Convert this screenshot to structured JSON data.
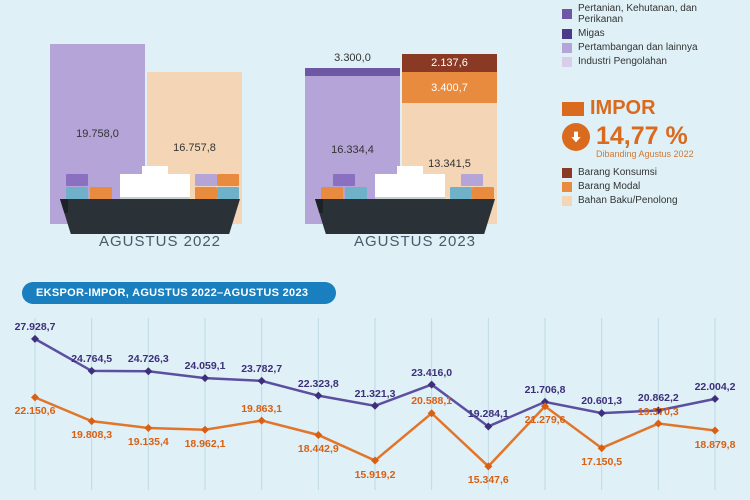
{
  "colors": {
    "background": "#dff1f7",
    "axis_label": "#4a5a66",
    "ekspor_seg": [
      "#b4a4d7",
      "#f4c99c",
      "#6e57a4",
      "#e88b3e"
    ],
    "impor_seg": [
      "#f4d6b7",
      "#e88b3e",
      "#8a3a24"
    ],
    "ekspor_line": "#5c4fa1",
    "impor_line": "#e2752c",
    "ekspor_marker": "#3d2f7a",
    "impor_marker": "#d95f12",
    "title_pill": "#1a7fbf",
    "gridline": "#bfd9e3"
  },
  "upper": {
    "group1": {
      "label": "AGUSTUS 2022",
      "ekspor": {
        "values": [
          "19.758,0"
        ],
        "heights": [
          180
        ]
      },
      "impor": {
        "values": [
          "16.757,8"
        ],
        "heights": [
          152
        ]
      }
    },
    "group2": {
      "label": "AGUSTUS 2023",
      "ekspor": {
        "values": [
          "16.334,4",
          "3.300,0"
        ],
        "heights": [
          148,
          8
        ],
        "extra_label": "3.300,0"
      },
      "impor": {
        "values": [
          "13.341,5",
          "3.400,7",
          "2.137,6"
        ],
        "heights": [
          121,
          31,
          18
        ]
      }
    }
  },
  "legend_top": [
    {
      "color": "#6e57a4",
      "label": "Pertanian, Kehutanan, dan Perikanan"
    },
    {
      "color": "#4b3a8a",
      "label": "Migas"
    },
    {
      "color": "#b4a4d7",
      "label": "Pertambangan dan lainnya"
    },
    {
      "color": "#d9cde9",
      "label": "Industri Pengolahan"
    }
  ],
  "impor_block": {
    "title": "IMPOR",
    "pct": "14,77 %",
    "caption": "Dibanding Agustus 2022",
    "legend": [
      {
        "color": "#8a3a24",
        "label": "Barang Konsumsi"
      },
      {
        "color": "#e88b3e",
        "label": "Barang Modal"
      },
      {
        "color": "#f4d6b7",
        "label": "Bahan Baku/Penolong"
      }
    ]
  },
  "chart": {
    "title": "EKSPOR-IMPOR, AGUSTUS 2022–AGUSTUS 2023",
    "n": 13,
    "ymin": 14000,
    "ymax": 29000,
    "ekspor": {
      "values": [
        27928.7,
        24764.5,
        24726.3,
        24059.1,
        23782.7,
        22323.8,
        21321.3,
        23416.0,
        19284.1,
        21706.8,
        20601.3,
        20862.2,
        22004.2
      ],
      "labels": [
        "27.928,7",
        "24.764,5",
        "24.726,3",
        "24.059,1",
        "23.782,7",
        "22.323,8",
        "21.321,3",
        "23.416,0",
        "19.284,1",
        "21.706,8",
        "20.601,3",
        "20.862,2",
        "22.004,2"
      ]
    },
    "impor": {
      "values": [
        22150.6,
        19808.3,
        19135.4,
        18962.1,
        19863.1,
        18442.9,
        15919.2,
        20588.1,
        15347.6,
        21279.6,
        17150.5,
        19570.3,
        18879.8
      ],
      "labels": [
        "22.150,6",
        "19.808,3",
        "19.135,4",
        "18.962,1",
        "19.863,1",
        "18.442,9",
        "15.919,2",
        "20.588,1",
        "15.347,6",
        "21.279,6",
        "17.150,5",
        "19.570,3",
        "18.879,8"
      ]
    },
    "label_side": {
      "ekspor": [
        "above",
        "above",
        "above",
        "above",
        "above",
        "above",
        "above",
        "above",
        "above",
        "above",
        "above",
        "above",
        "above"
      ],
      "impor": [
        "below",
        "below",
        "below",
        "below",
        "above",
        "below",
        "below",
        "above",
        "below",
        "below",
        "below",
        "above",
        "below"
      ]
    },
    "marker_r": 4,
    "line_w": 2.5
  }
}
